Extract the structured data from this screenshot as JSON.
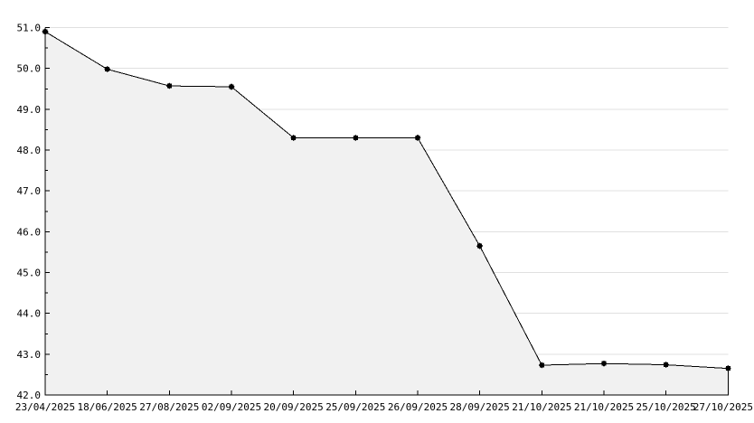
{
  "chart_data": {
    "type": "area",
    "title": "",
    "xlabel": "",
    "ylabel": "",
    "categories": [
      "23/04/2025",
      "18/06/2025",
      "27/08/2025",
      "02/09/2025",
      "20/09/2025",
      "25/09/2025",
      "26/09/2025",
      "28/09/2025",
      "21/10/2025",
      "21/10/2025",
      "25/10/2025",
      "27/10/2025"
    ],
    "values": [
      50.9,
      49.98,
      49.57,
      49.55,
      48.3,
      48.3,
      48.3,
      45.65,
      42.73,
      42.77,
      42.74,
      42.65
    ],
    "ylim": [
      42.0,
      51.0
    ],
    "y_major_step": 1.0,
    "y_minor_step": 0.5,
    "y_tick_labels": [
      "51.0",
      "50.0",
      "49.0",
      "48.0",
      "47.0",
      "46.0",
      "45.0",
      "44.0",
      "43.0",
      "42.0"
    ],
    "grid": "horizontal-only",
    "legend": "none",
    "marker": "filled-star-square",
    "colors": {
      "background": "#ffffff",
      "area_fill": "#f1f1f1",
      "line": "#000000",
      "marker": "#000000",
      "grid": "#e0e0e0",
      "axis": "#000000",
      "text": "#000000"
    }
  }
}
